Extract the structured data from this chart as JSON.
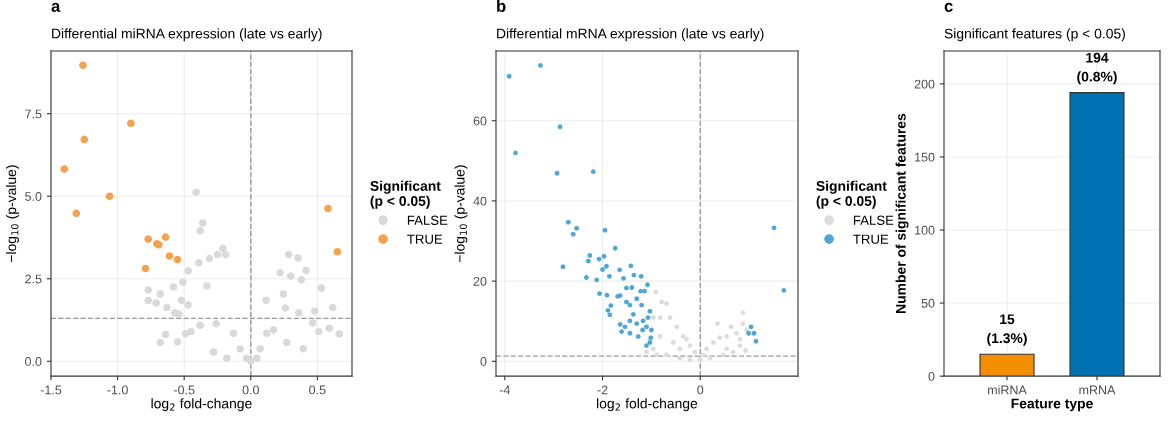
{
  "chart_data": [
    {
      "type": "scatter",
      "title": "a",
      "subtitle": "Differential miRNA expression (late vs early)",
      "xlabel": "log$_{2}$ fold-change",
      "ylabel": "−log$_{10}$ (p-value)",
      "legend_title": "Significant\n(p < 0.05)",
      "legend": "right",
      "marker": "circle",
      "grid": true,
      "xlim": [
        -1.5,
        0.76
      ],
      "xticks": [
        -1.5,
        {
          "value": -1,
          "label": "-1.0"
        },
        -0.5,
        {
          "value": 0,
          "label": "0.0"
        },
        0.5
      ],
      "ylim": [
        -0.45,
        9.4
      ],
      "yticks": [
        {
          "value": 0,
          "label": "0.0"
        },
        2.5,
        {
          "value": 5,
          "label": "5.0"
        },
        7.5
      ],
      "ref_lines": [
        {
          "axis": "x",
          "value": 0,
          "line_style": "dashed",
          "color": "#999999"
        },
        {
          "axis": "y",
          "value": 1.3,
          "line_style": "dashed",
          "color": "#999999"
        }
      ],
      "series": [
        {
          "name": "FALSE",
          "color": "#d9d9d9",
          "x": [
            -0.41,
            -0.36,
            -0.38,
            -0.21,
            -0.19,
            -0.25,
            -0.31,
            -0.39,
            -0.47,
            -0.51,
            -0.58,
            -0.77,
            -0.77,
            -0.71,
            -0.68,
            -0.63,
            -0.57,
            -0.54,
            -0.52,
            -0.47,
            -0.64,
            -0.68,
            -0.55,
            -0.49,
            -0.45,
            -0.38,
            -0.26,
            -0.13,
            -0.08,
            -0.03,
            0.0,
            -0.28,
            -0.18,
            -0.33,
            0.285,
            0.355,
            0.415,
            0.22,
            0.3,
            0.53,
            0.38,
            0.245,
            0.115,
            0.26,
            0.36,
            0.48,
            0.615,
            0.465,
            0.51,
            0.59,
            0.665,
            0.395,
            0.27,
            0.12,
            0.07,
            0.045,
            0.17
          ],
          "values": [
            5.12,
            4.19,
            3.95,
            3.42,
            3.23,
            3.23,
            3.11,
            2.98,
            2.74,
            2.39,
            2.25,
            2.16,
            1.84,
            1.76,
            2.04,
            1.63,
            1.47,
            1.42,
            1.85,
            1.71,
            0.81,
            0.57,
            0.59,
            0.83,
            0.9,
            1.09,
            1.14,
            0.85,
            0.38,
            0.09,
            0.0,
            0.28,
            0.09,
            2.28,
            3.23,
            3.13,
            2.75,
            2.68,
            2.58,
            2.22,
            2.47,
            2.04,
            1.85,
            1.61,
            1.47,
            1.52,
            1.63,
            1.16,
            0.9,
            1.0,
            0.83,
            0.38,
            0.57,
            0.85,
            0.38,
            0.09,
            0.95
          ]
        },
        {
          "name": "TRUE",
          "color": "#f5a24e",
          "x": [
            -1.26,
            -0.9,
            -1.25,
            -1.4,
            -1.06,
            -1.31,
            0.58,
            0.65,
            -0.77,
            -0.64,
            -0.705,
            -0.69,
            -0.61,
            -0.55,
            -0.79
          ],
          "values": [
            8.97,
            7.21,
            6.72,
            5.82,
            5.0,
            4.48,
            4.63,
            3.32,
            3.7,
            3.76,
            3.56,
            3.53,
            3.19,
            3.08,
            2.81
          ]
        }
      ]
    },
    {
      "type": "scatter",
      "title": "b",
      "subtitle": "Differential mRNA expression (late vs early)",
      "xlabel": "log$_{2}$ fold-change",
      "ylabel": "−log$_{10}$ (p-value)",
      "legend_title": "Significant\n(p < 0.05)",
      "legend": "right",
      "marker": "circle",
      "grid": true,
      "xlim": [
        -4.18,
        2.0
      ],
      "xticks": [
        -4,
        -2,
        0
      ],
      "ylim": [
        -3.7,
        77.4
      ],
      "yticks": [
        0,
        20,
        40,
        60
      ],
      "ref_lines": [
        {
          "axis": "x",
          "value": 0,
          "line_style": "dashed",
          "color": "#999999"
        },
        {
          "axis": "y",
          "value": 1.3,
          "line_style": "dashed",
          "color": "#999999"
        }
      ],
      "series": [
        {
          "name": "FALSE",
          "color": "#dcdcdc",
          "x": [
            -0.91,
            -0.79,
            -0.69,
            -0.96,
            -0.82,
            -0.62,
            -0.48,
            -0.35,
            -0.21,
            -0.11,
            0.0,
            -0.96,
            -0.69,
            -0.42,
            -0.21,
            -0.82,
            -0.55,
            -0.42,
            -0.28,
            -1.03,
            -1.1,
            -0.89,
            0.13,
            0.27,
            0.4,
            0.35,
            0.54,
            0.63,
            0.74,
            0.87,
            0.87,
            0.95,
            0.93,
            0.81,
            0.67,
            0.47,
            0.2,
            0.81,
            0.54,
            0.06
          ],
          "values": [
            17.3,
            14.8,
            14.4,
            10.9,
            10.9,
            10.9,
            8.6,
            6.2,
            3.9,
            2.3,
            0.4,
            3.1,
            1.6,
            0.8,
            0.4,
            6.2,
            4.7,
            3.1,
            5.5,
            5.5,
            2.3,
            1.6,
            3.1,
            4.7,
            5.9,
            9.4,
            6.2,
            8.6,
            7.0,
            12.1,
            9.4,
            7.8,
            2.7,
            3.9,
            2.3,
            1.6,
            0.8,
            5.5,
            3.1,
            1.6
          ]
        },
        {
          "name": "TRUE",
          "color": "#4fa6d8",
          "x": [
            -3.91,
            -3.27,
            -2.87,
            -3.78,
            -2.93,
            -2.19,
            -2.7,
            -2.53,
            -2.6,
            -1.95,
            1.51,
            1.71,
            -1.74,
            -2.26,
            -2.29,
            -2.07,
            -1.97,
            -2.81,
            -1.92,
            -2.0,
            -1.42,
            -1.65,
            -2.33,
            -2.12,
            -1.86,
            -1.57,
            -1.36,
            -1.21,
            -1.08,
            -2.06,
            -1.91,
            -1.69,
            -1.51,
            -1.4,
            -1.22,
            -1.14,
            -1.83,
            -1.89,
            -1.85,
            -1.64,
            -1.54,
            -1.61,
            -1.44,
            -1.27,
            -1.1,
            1.04,
            0.99,
            1.1,
            1.14,
            -1.17,
            -1.03,
            -1.2,
            -1.3,
            -1.44,
            -1.37,
            -1.3,
            -1.1,
            -1.0,
            -1.01,
            -1.44,
            -1.18,
            -1.51,
            -1.64,
            -1.07,
            -1.03
          ],
          "values": [
            71.1,
            73.8,
            58.5,
            52.0,
            46.9,
            47.3,
            34.7,
            33.2,
            31.7,
            32.7,
            33.3,
            17.7,
            28.2,
            26.4,
            25.0,
            25.5,
            26.2,
            23.6,
            23.7,
            22.9,
            23.8,
            22.8,
            20.9,
            20.3,
            21.2,
            20.7,
            21.5,
            21.2,
            19.1,
            16.9,
            16.5,
            16.2,
            18.3,
            18.4,
            17.5,
            17.5,
            13.9,
            12.7,
            11.6,
            9.2,
            8.6,
            7.4,
            7.0,
            6.2,
            3.9,
            8.6,
            7.0,
            7.0,
            5.0,
            10.1,
            12.5,
            14.0,
            15.6,
            14.0,
            11.7,
            9.4,
            8.6,
            7.8,
            5.9,
            10.1,
            7.8,
            14.8,
            16.4,
            10.9,
            4.7
          ]
        }
      ]
    },
    {
      "type": "bar",
      "title": "c",
      "subtitle": "Significant features (p < 0.05)",
      "xlabel": "Feature type",
      "ylabel": "Number of significant features",
      "grid": true,
      "categories": [
        "miRNA",
        "mRNA"
      ],
      "values": [
        15,
        194
      ],
      "colors": [
        "#f28e00",
        "#0072b2"
      ],
      "value_labels": [
        "15\n(1.3%)",
        "194\n(0.8%)"
      ],
      "ylim": [
        0,
        222.5
      ],
      "yticks": [
        0,
        50,
        100,
        150,
        200
      ]
    }
  ]
}
